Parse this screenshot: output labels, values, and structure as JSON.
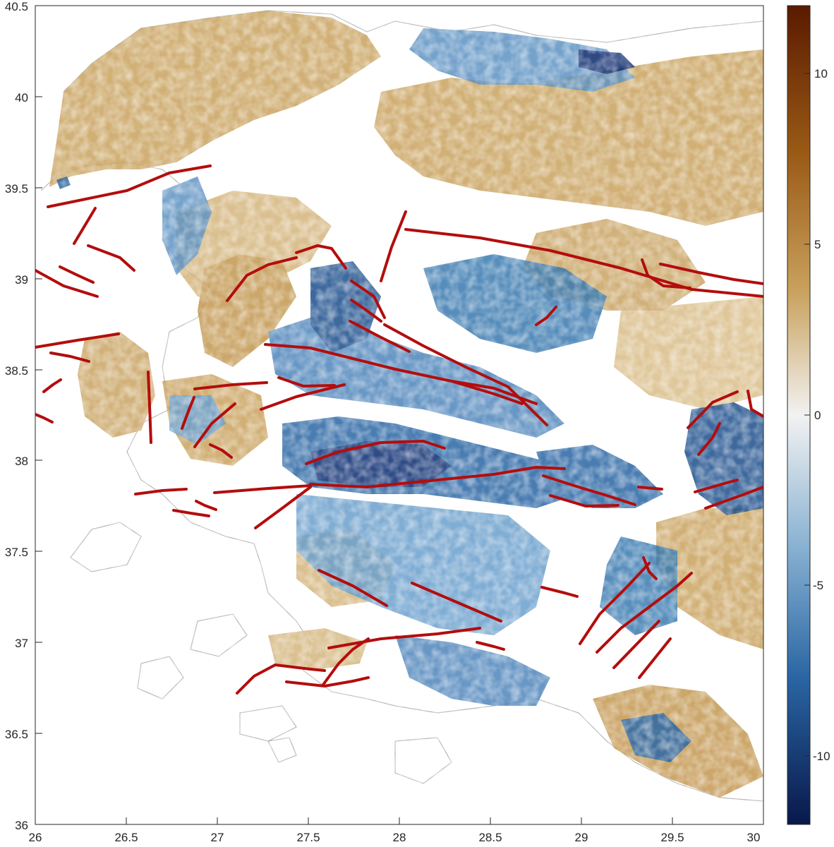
{
  "map": {
    "x_axis": {
      "min": 26,
      "max": 30,
      "ticks": [
        "26",
        "26.5",
        "27",
        "27.5",
        "28",
        "28.5",
        "29",
        "29.5",
        "30"
      ]
    },
    "y_axis": {
      "min": 36,
      "max": 40.5,
      "ticks": [
        "36",
        "36.5",
        "37",
        "37.5",
        "38",
        "38.5",
        "39",
        "39.5",
        "40",
        "40.5"
      ]
    },
    "colorbar": {
      "min": -12,
      "max": 12,
      "ticks": [
        "10",
        "5",
        "0",
        "-5",
        "-10"
      ],
      "ticks_values": [
        10,
        5,
        0,
        -5,
        -10
      ],
      "colors": {
        "top": "#5a1a00",
        "upper": "#b8873a",
        "mid": "#f2f2f2",
        "lower": "#3a7ab0",
        "bottom": "#08184a"
      }
    },
    "colors": {
      "fault": "#b30d0d",
      "coastline": "#b5b5b5",
      "uplift": "#c9a25e",
      "subsidence": "#1f5a96"
    }
  }
}
